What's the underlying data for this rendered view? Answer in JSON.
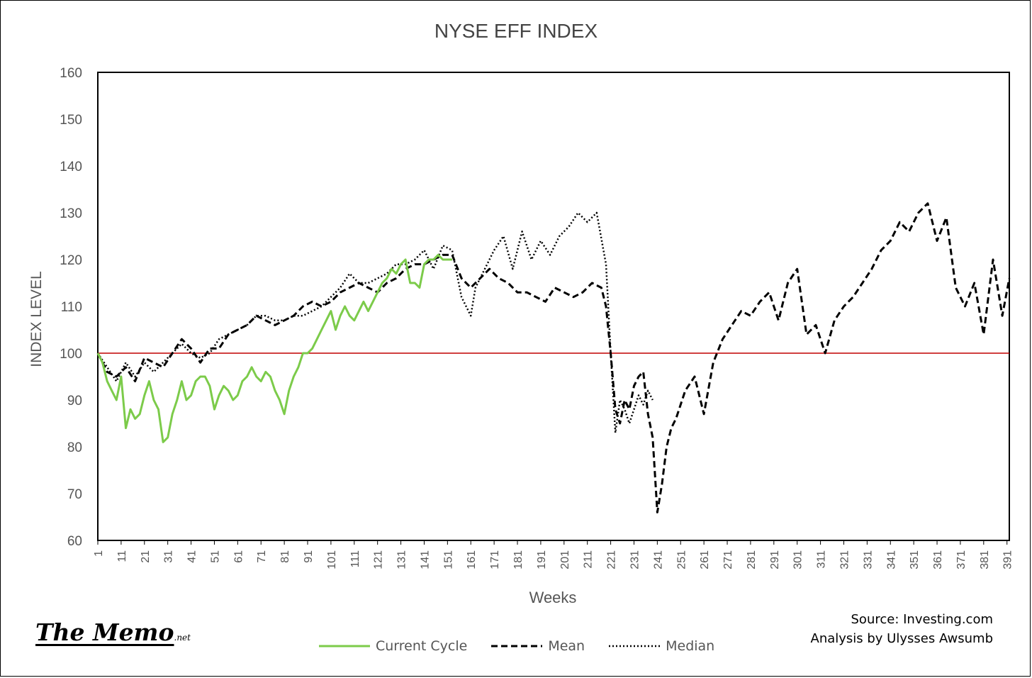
{
  "title": "NYSE EFF INDEX",
  "source_line": "Source: Investing.com",
  "analysis_line": "Analysis by Ulysses Awsumb",
  "logo": {
    "main": "The Memo",
    "suffix": ".net"
  },
  "chart_data": {
    "type": "line",
    "xlabel": "Weeks",
    "ylabel": "INDEX LEVEL",
    "xlim": [
      1,
      392
    ],
    "ylim": [
      60,
      160
    ],
    "yticks": [
      60,
      70,
      80,
      90,
      100,
      110,
      120,
      130,
      140,
      150,
      160
    ],
    "xticks": [
      1,
      11,
      21,
      31,
      41,
      51,
      61,
      71,
      81,
      91,
      101,
      111,
      121,
      131,
      141,
      151,
      161,
      171,
      181,
      191,
      201,
      211,
      221,
      231,
      241,
      251,
      261,
      271,
      281,
      291,
      301,
      311,
      321,
      331,
      341,
      351,
      361,
      371,
      381,
      391
    ],
    "reference_line": {
      "y": 100,
      "color": "#c00000"
    },
    "grid": false,
    "legend_position": "bottom",
    "series": [
      {
        "name": "Current Cycle",
        "color": "#7ccb4a",
        "style": "solid",
        "x": [
          1,
          3,
          5,
          7,
          9,
          11,
          13,
          15,
          17,
          19,
          21,
          23,
          25,
          27,
          29,
          31,
          33,
          35,
          37,
          39,
          41,
          43,
          45,
          47,
          49,
          51,
          53,
          55,
          57,
          59,
          61,
          63,
          65,
          67,
          69,
          71,
          73,
          75,
          77,
          79,
          81,
          83,
          85,
          87,
          89,
          91,
          93,
          95,
          97,
          99,
          101,
          103,
          105,
          107,
          109,
          111,
          113,
          115,
          117,
          119,
          121,
          123,
          125,
          127,
          129,
          131,
          133,
          135,
          137,
          139,
          141,
          143,
          145,
          147,
          149,
          151,
          153
        ],
        "y": [
          100,
          98,
          94,
          92,
          90,
          95,
          84,
          88,
          86,
          87,
          91,
          94,
          90,
          88,
          81,
          82,
          87,
          90,
          94,
          90,
          91,
          94,
          95,
          95,
          93,
          88,
          91,
          93,
          92,
          90,
          91,
          94,
          95,
          97,
          95,
          94,
          96,
          95,
          92,
          90,
          87,
          92,
          95,
          97,
          100,
          100,
          101,
          103,
          105,
          107,
          109,
          105,
          108,
          110,
          108,
          107,
          109,
          111,
          109,
          111,
          113,
          115,
          116,
          118,
          117,
          119,
          120,
          115,
          115,
          114,
          119,
          120,
          120,
          121,
          120,
          120,
          120
        ]
      },
      {
        "name": "Mean",
        "color": "#000000",
        "style": "dashed",
        "x": [
          1,
          5,
          9,
          13,
          17,
          21,
          25,
          29,
          33,
          37,
          41,
          45,
          49,
          53,
          57,
          61,
          65,
          69,
          73,
          77,
          81,
          85,
          89,
          93,
          97,
          101,
          105,
          109,
          113,
          117,
          121,
          125,
          129,
          133,
          137,
          141,
          145,
          149,
          153,
          157,
          161,
          165,
          169,
          173,
          177,
          181,
          185,
          189,
          193,
          197,
          201,
          205,
          209,
          213,
          217,
          219,
          221,
          223,
          225,
          227,
          229,
          231,
          233,
          235,
          237,
          239,
          241,
          243,
          245,
          247,
          249,
          253,
          257,
          261,
          265,
          269,
          273,
          277,
          281,
          285,
          289,
          293,
          297,
          301,
          305,
          309,
          313,
          317,
          321,
          325,
          329,
          333,
          337,
          341,
          345,
          349,
          353,
          357,
          361,
          365,
          369,
          373,
          377,
          381,
          385,
          389,
          392
        ],
        "y": [
          100,
          96,
          95,
          97,
          94,
          99,
          98,
          97,
          100,
          103,
          101,
          98,
          101,
          101,
          104,
          105,
          106,
          108,
          107,
          106,
          107,
          108,
          110,
          111,
          110,
          111,
          113,
          114,
          115,
          114,
          113,
          115,
          116,
          118,
          119,
          119,
          120,
          121,
          121,
          116,
          114,
          116,
          118,
          116,
          115,
          113,
          113,
          112,
          111,
          114,
          113,
          112,
          113,
          115,
          114,
          110,
          100,
          88,
          85,
          90,
          88,
          93,
          95,
          96,
          87,
          82,
          66,
          72,
          80,
          84,
          86,
          92,
          95,
          87,
          98,
          103,
          106,
          109,
          108,
          111,
          113,
          107,
          115,
          118,
          104,
          106,
          100,
          107,
          110,
          112,
          115,
          118,
          122,
          124,
          128,
          126,
          130,
          132,
          124,
          129,
          114,
          110,
          115,
          104,
          120,
          108,
          116
        ]
      },
      {
        "name": "Median",
        "color": "#000000",
        "style": "dotted",
        "x": [
          1,
          5,
          9,
          13,
          17,
          21,
          25,
          29,
          33,
          37,
          41,
          45,
          49,
          53,
          57,
          61,
          65,
          69,
          73,
          77,
          81,
          85,
          89,
          93,
          97,
          101,
          105,
          109,
          113,
          117,
          121,
          125,
          129,
          133,
          137,
          141,
          145,
          149,
          153,
          157,
          161,
          163,
          167,
          171,
          175,
          179,
          183,
          187,
          191,
          195,
          199,
          203,
          207,
          211,
          215,
          219,
          221,
          223,
          225,
          227,
          229,
          231,
          233,
          235,
          237,
          239
        ],
        "y": [
          100,
          97,
          94,
          98,
          95,
          98,
          96,
          98,
          100,
          102,
          100,
          99,
          100,
          103,
          104,
          105,
          106,
          108,
          108,
          107,
          107,
          108,
          108,
          109,
          110,
          112,
          114,
          117,
          115,
          115,
          116,
          117,
          119,
          119,
          120,
          122,
          118,
          123,
          122,
          112,
          108,
          114,
          118,
          122,
          125,
          118,
          126,
          120,
          124,
          121,
          125,
          127,
          130,
          128,
          130,
          119,
          100,
          83,
          90,
          88,
          85,
          88,
          91,
          89,
          92,
          90
        ]
      }
    ]
  }
}
